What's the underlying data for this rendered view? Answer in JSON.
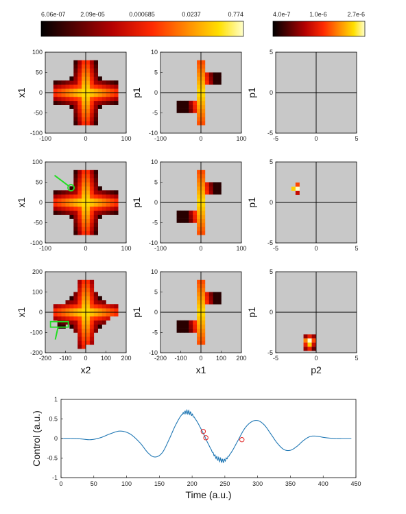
{
  "colors": {
    "panel_bg": "#c8c8c8",
    "axis_line": "#000000",
    "curve": "#1f77b4",
    "marker": "#e02020",
    "annotation": "#22dd22",
    "colormap": [
      "#000000",
      "#5a0000",
      "#b40000",
      "#ff2a00",
      "#ff8a00",
      "#ffe000",
      "#ffffcc"
    ]
  },
  "colorbars": [
    {
      "ticks": [
        "6.06e-07",
        "2.09e-05",
        "0.000685",
        "0.0237",
        "0.774"
      ]
    },
    {
      "ticks": [
        "4.0e-7",
        "1.0e-6",
        "2.7e-6"
      ]
    }
  ],
  "chart_data": [
    {
      "type": "heatmap",
      "panel": "row1-col1",
      "xlabel": "",
      "ylabel": "x1",
      "xlim": [
        -110,
        110
      ],
      "ylim": [
        -110,
        110
      ],
      "xticks": [
        "-100",
        "0",
        "100"
      ],
      "yticks": [
        "100",
        "50",
        "0",
        "-50",
        "-100"
      ],
      "shape": "cross",
      "center": [
        0,
        0
      ],
      "arm_x": [
        -80,
        80
      ],
      "arm_y": [
        -80,
        80
      ]
    },
    {
      "type": "heatmap",
      "panel": "row1-col2",
      "xlabel": "",
      "ylabel": "p1",
      "xlim": [
        -110,
        110
      ],
      "ylim": [
        -10,
        10
      ],
      "xticks": [
        "-100",
        "0",
        "100"
      ],
      "yticks": [
        "10",
        "5",
        "0",
        "-5",
        "-10"
      ],
      "shape": "blob",
      "center": [
        0,
        0
      ]
    },
    {
      "type": "heatmap",
      "panel": "row1-col3",
      "xlabel": "",
      "ylabel": "p1",
      "xlim": [
        -5,
        5
      ],
      "ylim": [
        -5,
        5
      ],
      "xticks": [
        "-5",
        "0",
        "5"
      ],
      "yticks": [
        "5",
        "0",
        "-5"
      ],
      "shape": "empty"
    },
    {
      "type": "heatmap",
      "panel": "row2-col1",
      "xlabel": "",
      "ylabel": "x1",
      "xlim": [
        -110,
        110
      ],
      "ylim": [
        -110,
        110
      ],
      "xticks": [
        "-100",
        "0",
        "100"
      ],
      "yticks": [
        "100",
        "50",
        "0",
        "-50",
        "-100"
      ],
      "shape": "cross",
      "center": [
        0,
        0
      ],
      "marker_circle": [
        -40,
        40
      ]
    },
    {
      "type": "heatmap",
      "panel": "row2-col2",
      "xlabel": "",
      "ylabel": "p1",
      "xlim": [
        -110,
        110
      ],
      "ylim": [
        -10,
        10
      ],
      "xticks": [
        "-100",
        "0",
        "100"
      ],
      "yticks": [
        "10",
        "5",
        "0",
        "-5",
        "-10"
      ],
      "shape": "blob",
      "center": [
        0,
        0
      ]
    },
    {
      "type": "heatmap",
      "panel": "row2-col3",
      "xlabel": "",
      "ylabel": "p1",
      "xlim": [
        -5,
        5
      ],
      "ylim": [
        -5,
        5
      ],
      "xticks": [
        "-5",
        "0",
        "5"
      ],
      "yticks": [
        "5",
        "0",
        "-5"
      ],
      "shape": "spot",
      "center": [
        -2.3,
        1.7
      ]
    },
    {
      "type": "heatmap",
      "panel": "row3-col1",
      "xlabel": "x2",
      "ylabel": "x1",
      "xlim": [
        -200,
        200
      ],
      "ylim": [
        -200,
        200
      ],
      "xticks": [
        "-200",
        "-100",
        "0",
        "100",
        "200"
      ],
      "yticks": [
        "200",
        "100",
        "0",
        "-100",
        "-200"
      ],
      "shape": "cross-spread",
      "center": [
        0,
        0
      ],
      "marker_rect": [
        -130,
        -60
      ]
    },
    {
      "type": "heatmap",
      "panel": "row3-col2",
      "xlabel": "x1",
      "ylabel": "p1",
      "xlim": [
        -200,
        200
      ],
      "ylim": [
        -10,
        10
      ],
      "xticks": [
        "-200",
        "-100",
        "0",
        "100",
        "200"
      ],
      "yticks": [
        "10",
        "5",
        "0",
        "-5",
        "-10"
      ],
      "shape": "blob",
      "center": [
        0,
        0
      ]
    },
    {
      "type": "heatmap",
      "panel": "row3-col3",
      "xlabel": "p2",
      "ylabel": "p1",
      "xlim": [
        -5,
        5
      ],
      "ylim": [
        -5,
        5
      ],
      "xticks": [
        "-5",
        "0",
        "5"
      ],
      "yticks": [
        "5",
        "0",
        "-5"
      ],
      "shape": "spot",
      "center": [
        -0.8,
        -3.5
      ]
    },
    {
      "type": "line",
      "panel": "control",
      "xlabel": "Time (a.u.)",
      "ylabel": "Control (a.u.)",
      "xlim": [
        0,
        450
      ],
      "ylim": [
        -1,
        1
      ],
      "xticks": [
        "0",
        "50",
        "100",
        "150",
        "200",
        "250",
        "300",
        "350",
        "400",
        "450"
      ],
      "yticks": [
        "1",
        "0.5",
        "0",
        "-0.5",
        "-1"
      ],
      "series": [
        {
          "x": [
            0,
            15,
            30,
            45,
            60,
            75,
            90,
            105,
            120,
            135,
            145,
            155,
            165,
            175,
            185,
            195,
            205,
            215,
            225,
            235,
            245,
            250,
            260,
            270,
            280,
            290,
            300,
            310,
            320,
            330,
            340,
            350,
            360,
            370,
            380,
            390,
            400,
            410,
            420,
            430,
            443
          ],
          "y": [
            0,
            0,
            -0.01,
            -0.03,
            0.02,
            0.12,
            0.19,
            0.12,
            -0.1,
            -0.4,
            -0.47,
            -0.35,
            -0.02,
            0.35,
            0.62,
            0.67,
            0.5,
            0.2,
            -0.15,
            -0.45,
            -0.56,
            -0.55,
            -0.35,
            -0.05,
            0.25,
            0.42,
            0.46,
            0.35,
            0.12,
            -0.12,
            -0.28,
            -0.3,
            -0.2,
            -0.05,
            0.05,
            0.06,
            0.03,
            0.01,
            0,
            0,
            0
          ]
        }
      ],
      "oscillation_ranges": [
        [
          183,
          205
        ],
        [
          228,
          258
        ]
      ],
      "markers": [
        {
          "x": 217,
          "y": 0.18
        },
        {
          "x": 221,
          "y": 0.02
        },
        {
          "x": 276,
          "y": -0.03
        }
      ]
    }
  ]
}
